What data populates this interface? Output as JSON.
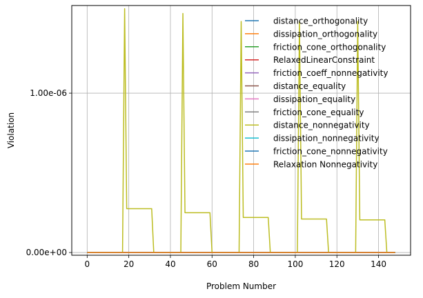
{
  "chart_data": {
    "type": "line",
    "xlabel": "Problem Number",
    "ylabel": "Violation",
    "xlim": [
      -7.4,
      155.4
    ],
    "ylim": [
      -1.7e-08,
      1.55e-06
    ],
    "x_ticks": [
      0,
      20,
      40,
      60,
      80,
      100,
      120,
      140
    ],
    "x_tick_labels": [
      "0",
      "20",
      "40",
      "60",
      "80",
      "100",
      "120",
      "140"
    ],
    "y_ticks": [
      0,
      1e-06
    ],
    "y_tick_labels": [
      "0.00e+00",
      "1.00e-06"
    ],
    "grid": true,
    "legend_position": "upper right",
    "series": [
      {
        "name": "distance_orthogonality",
        "color": "#1f77b4",
        "x": [
          0,
          148
        ],
        "values": [
          0,
          0
        ]
      },
      {
        "name": "dissipation_orthogonality",
        "color": "#ff7f0e",
        "x": [
          0,
          148
        ],
        "values": [
          0,
          0
        ]
      },
      {
        "name": "friction_cone_orthogonality",
        "color": "#2ca02c",
        "x": [
          0,
          148
        ],
        "values": [
          0,
          0
        ]
      },
      {
        "name": "RelaxedLinearConstraint",
        "color": "#d62728",
        "x": [
          0,
          148
        ],
        "values": [
          0,
          0
        ]
      },
      {
        "name": "friction_coeff_nonnegativity",
        "color": "#9467bd",
        "x": [
          0,
          148
        ],
        "values": [
          0,
          0
        ]
      },
      {
        "name": "distance_equality",
        "color": "#8c564b",
        "x": [
          0,
          148
        ],
        "values": [
          0,
          0
        ]
      },
      {
        "name": "dissipation_equality",
        "color": "#e377c2",
        "x": [
          0,
          148
        ],
        "values": [
          0,
          0
        ]
      },
      {
        "name": "friction_cone_equality",
        "color": "#7f7f7f",
        "x": [
          0,
          148
        ],
        "values": [
          0,
          0
        ]
      },
      {
        "name": "distance_nonnegativity",
        "color": "#bcbd22",
        "x": [
          0,
          17,
          18,
          19,
          31,
          32,
          45,
          46,
          47,
          59,
          60,
          73,
          74,
          75,
          87,
          88,
          101,
          102,
          103,
          115,
          116,
          129,
          130,
          131,
          143,
          144,
          148
        ],
        "values": [
          0,
          0,
          1.53e-06,
          2.75e-07,
          2.75e-07,
          0,
          0,
          1.5e-06,
          2.5e-07,
          2.5e-07,
          0,
          0,
          1.45e-06,
          2.2e-07,
          2.2e-07,
          0,
          0,
          1.45e-06,
          2.1e-07,
          2.1e-07,
          0,
          0,
          1.45e-06,
          2.05e-07,
          2.05e-07,
          0,
          0
        ]
      },
      {
        "name": "dissipation_nonnegativity",
        "color": "#17becf",
        "x": [
          0,
          148
        ],
        "values": [
          0,
          0
        ]
      },
      {
        "name": "friction_cone_nonnegativity",
        "color": "#1f77b4",
        "x": [
          0,
          148
        ],
        "values": [
          0,
          0
        ]
      },
      {
        "name": "Relaxation Nonnegativity",
        "color": "#ff7f0e",
        "x": [
          0,
          148
        ],
        "values": [
          0,
          0
        ]
      }
    ]
  }
}
